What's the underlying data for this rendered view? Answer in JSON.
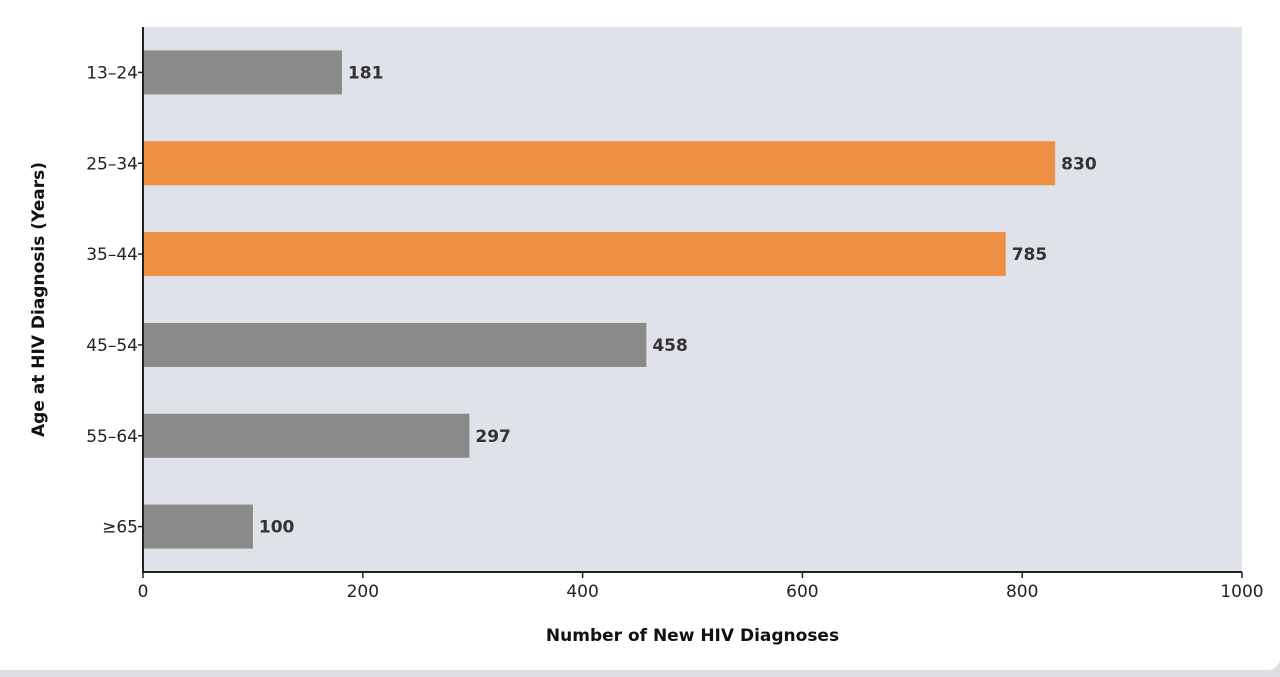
{
  "chart_data": {
    "type": "bar",
    "orientation": "horizontal",
    "title": "",
    "xlabel": "Number of New HIV Diagnoses",
    "ylabel": "Age at HIV Diagnosis (Years)",
    "categories": [
      "13–24",
      "25–34",
      "35–44",
      "45–54",
      "55–64",
      "≥65"
    ],
    "values": [
      181,
      830,
      785,
      458,
      297,
      100
    ],
    "value_labels": [
      "181",
      "830",
      "785",
      "458",
      "297",
      "100"
    ],
    "highlighted": [
      false,
      true,
      true,
      false,
      false,
      false
    ],
    "xlim": [
      0,
      1000
    ],
    "xticks": [
      0,
      200,
      400,
      600,
      800,
      1000
    ],
    "xtick_labels": [
      "0",
      "200",
      "400",
      "600",
      "800",
      "1000"
    ],
    "grid": false,
    "colors": {
      "default": "#8a8a8a",
      "highlight": "#ee9044",
      "plot_bg": "#e0e2ea",
      "axis": "#222222"
    }
  }
}
